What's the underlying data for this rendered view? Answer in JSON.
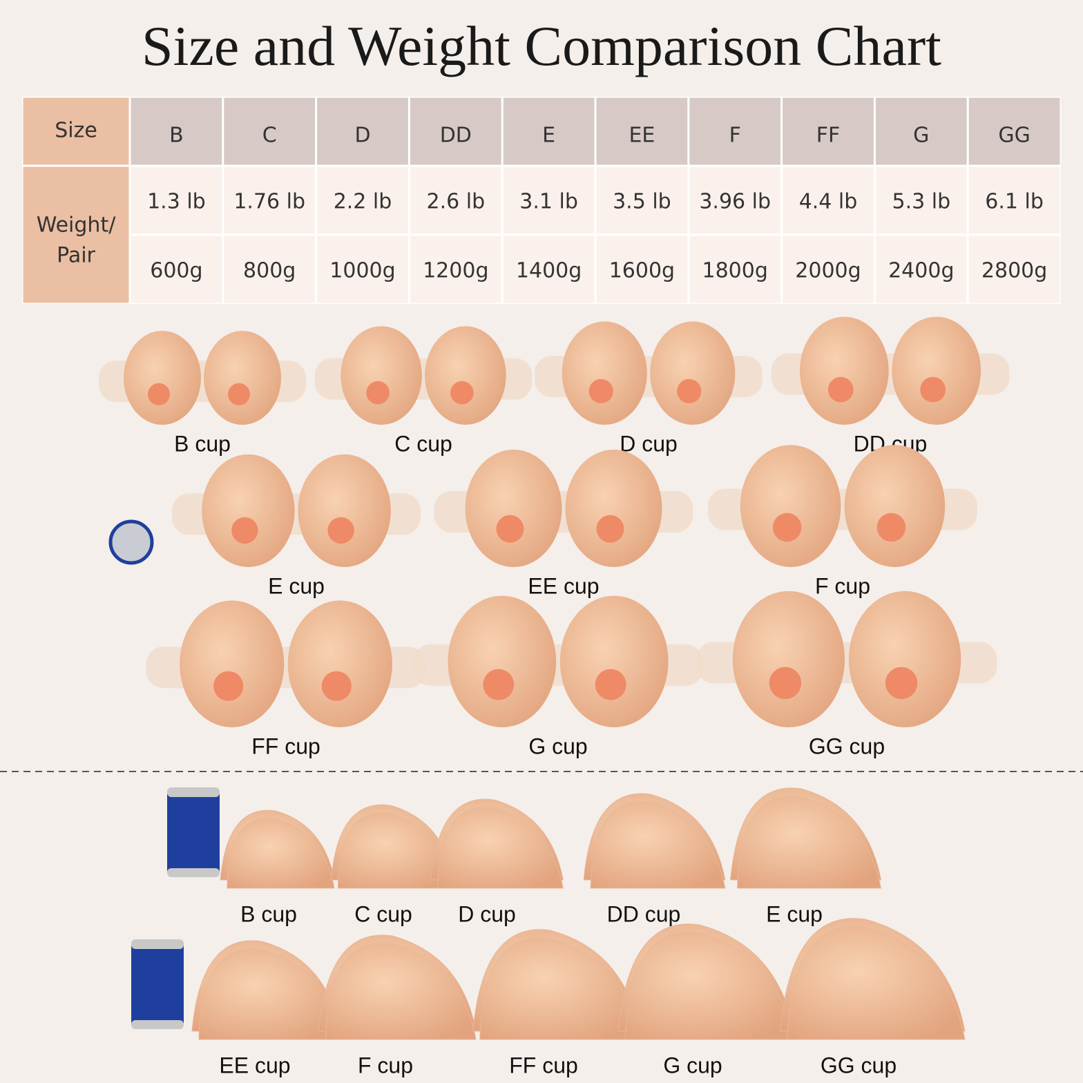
{
  "title": "Size and Weight Comparison Chart",
  "table": {
    "header": [
      "Size",
      "B",
      "C",
      "D",
      "DD",
      "E",
      "EE",
      "F",
      "FF",
      "G",
      "GG"
    ],
    "row_label": [
      "Weight/",
      "Pair"
    ],
    "rows": [
      [
        "1.3 lb",
        "1.76 lb",
        "2.2 lb",
        "2.6 lb",
        "3.1 lb",
        "3.5 lb",
        "3.96 lb",
        "4.4 lb",
        "5.3 lb",
        "6.1 lb"
      ],
      [
        "600g",
        "800g",
        "1000g",
        "1200g",
        "1400g",
        "1600g",
        "1800g",
        "2000g",
        "2400g",
        "2800g"
      ]
    ]
  },
  "front_view": [
    "B cup",
    "C cup",
    "D cup",
    "DD cup",
    "E cup",
    "EE cup",
    "F cup",
    "FF cup",
    "G cup",
    "GG cup"
  ],
  "side_view": [
    "B cup",
    "C cup",
    "D cup",
    "DD cup",
    "E cup",
    "EE cup",
    "F cup",
    "FF cup",
    "G cup",
    "GG cup"
  ]
}
